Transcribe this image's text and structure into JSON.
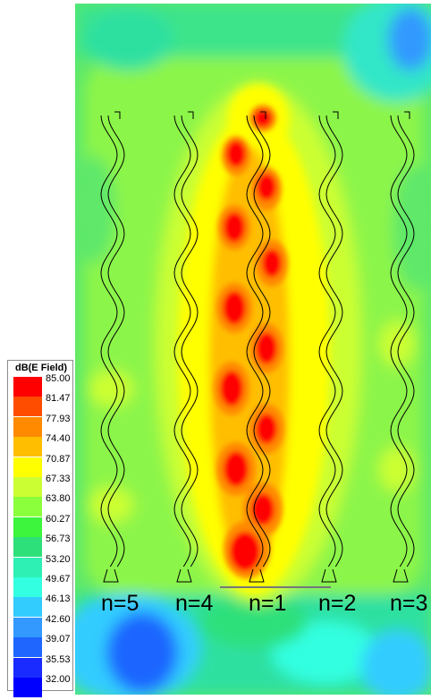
{
  "legend": {
    "title": "dB(E Field)",
    "values": [
      "85.00",
      "81.47",
      "77.93",
      "74.40",
      "70.87",
      "67.33",
      "63.80",
      "60.27",
      "56.73",
      "53.20",
      "49.67",
      "46.13",
      "42.60",
      "39.07",
      "35.53",
      "32.00"
    ],
    "colors": [
      "#ff0000",
      "#ff4d00",
      "#ff8a00",
      "#ffbe00",
      "#ffff00",
      "#ccff33",
      "#8cff3c",
      "#3cf53c",
      "#2ee07a",
      "#2ef0b4",
      "#33ffe1",
      "#33ccff",
      "#3399ff",
      "#1f66ff",
      "#1a2bff",
      "#0000ff"
    ]
  },
  "labels": [
    "n=5",
    "n=4",
    "n=1",
    "n=2",
    "n=3"
  ]
}
